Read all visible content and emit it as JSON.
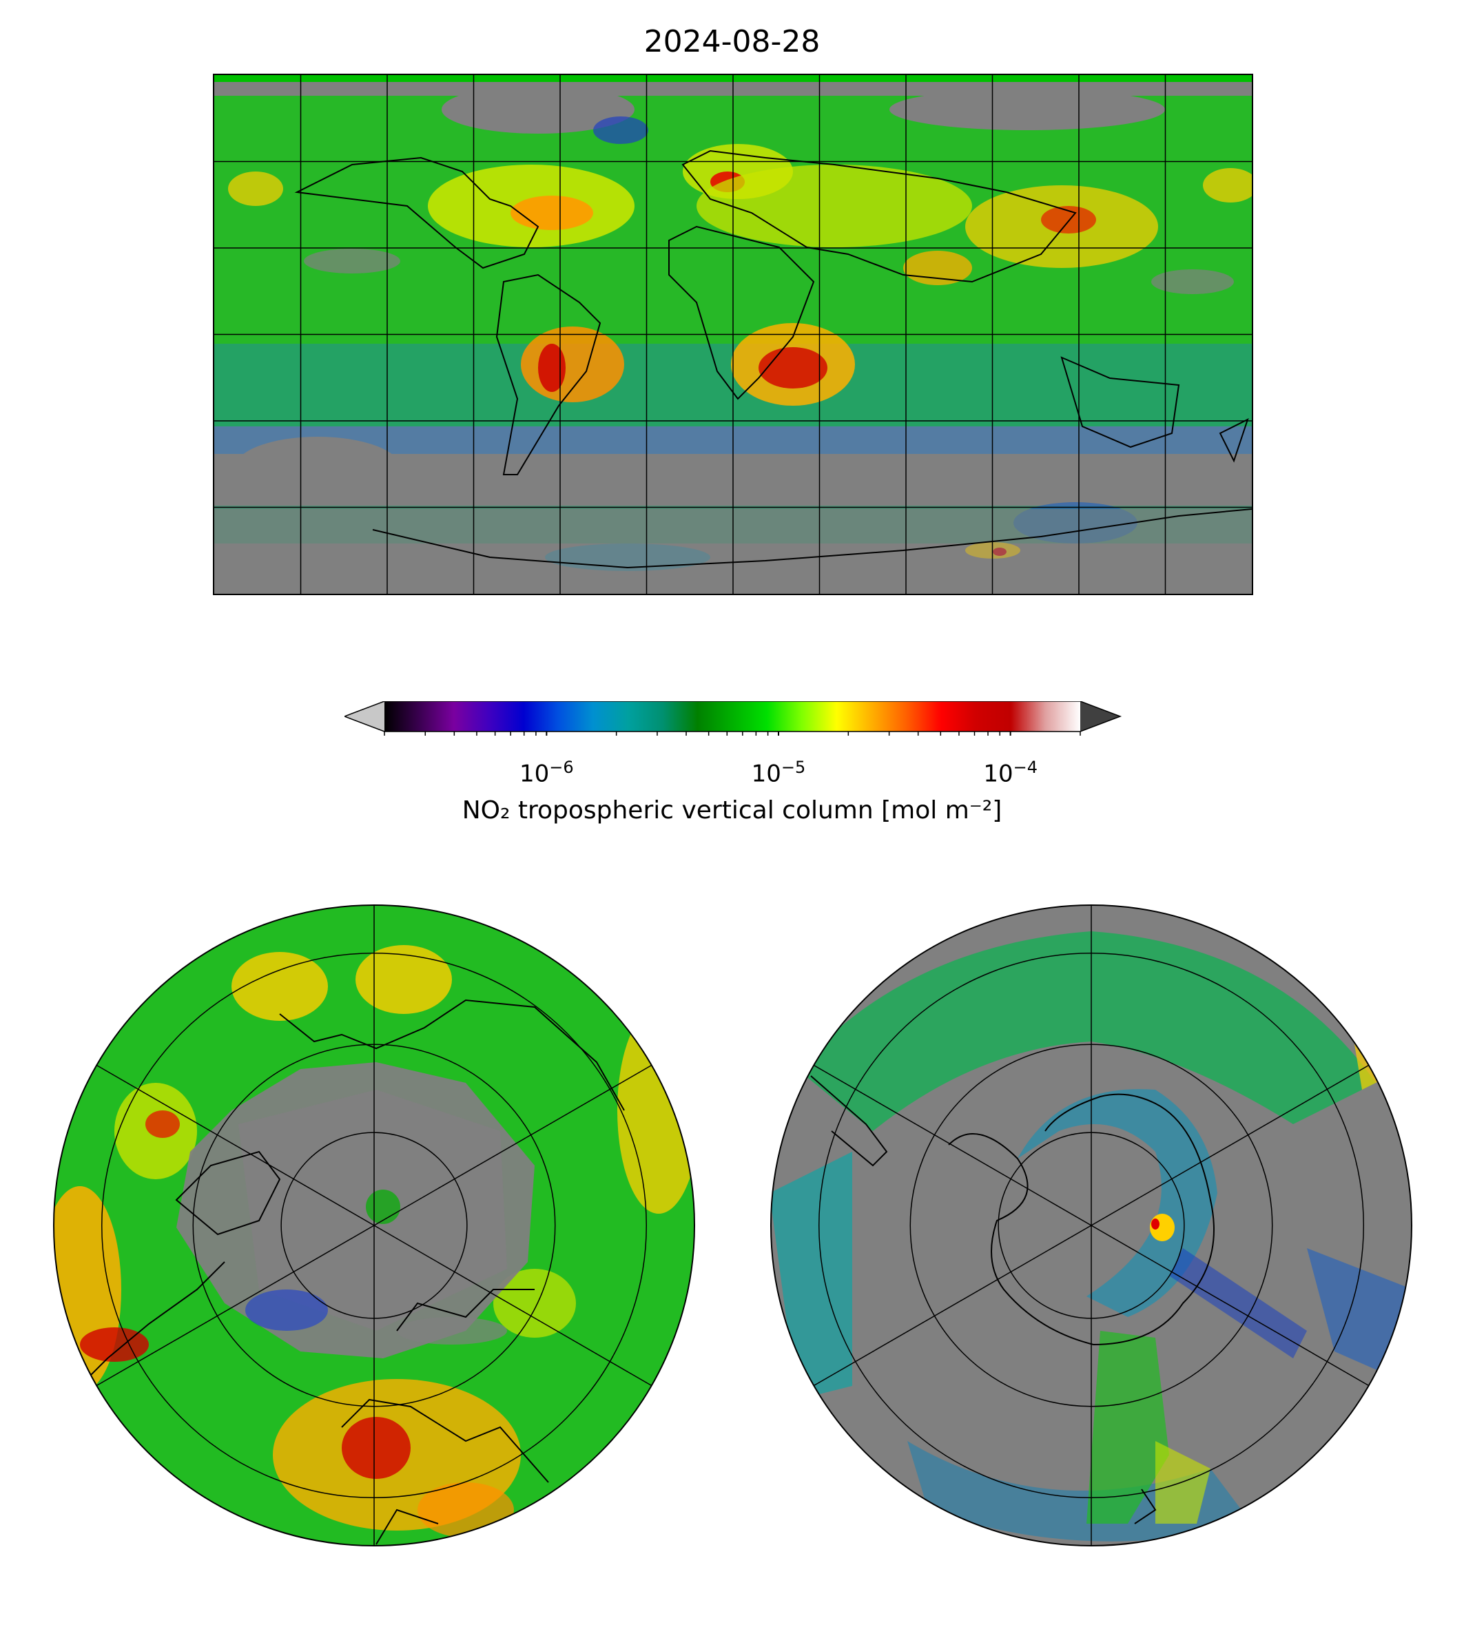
{
  "title": "2024-08-28",
  "colorbar": {
    "label": "NO₂ tropospheric vertical column [mol m⁻²]",
    "scale": "log",
    "range": [
      2e-07,
      0.0002
    ],
    "extend": "both",
    "ticks": [
      {
        "value": 1e-06,
        "label_base": "10",
        "label_exp": "−6"
      },
      {
        "value": 1e-05,
        "label_base": "10",
        "label_exp": "−5"
      },
      {
        "value": 0.0001,
        "label_base": "10",
        "label_exp": "−4"
      }
    ],
    "colors": [
      "#000000",
      "#3a0050",
      "#7a00a0",
      "#4000c0",
      "#0000d0",
      "#0050e0",
      "#0090d0",
      "#00a0a0",
      "#009070",
      "#008000",
      "#00b000",
      "#00e000",
      "#80ff00",
      "#ffff00",
      "#ffb000",
      "#ff6000",
      "#ff0000",
      "#d00000",
      "#c00000",
      "#e0a0a0",
      "#ffffff"
    ],
    "under_color": "#c8c8c8",
    "over_color": "#404040"
  },
  "maps": {
    "no_data_color": "#808080",
    "grid": true,
    "projections": [
      "plate-carree",
      "north-polar-stereographic",
      "south-polar-stereographic"
    ]
  }
}
